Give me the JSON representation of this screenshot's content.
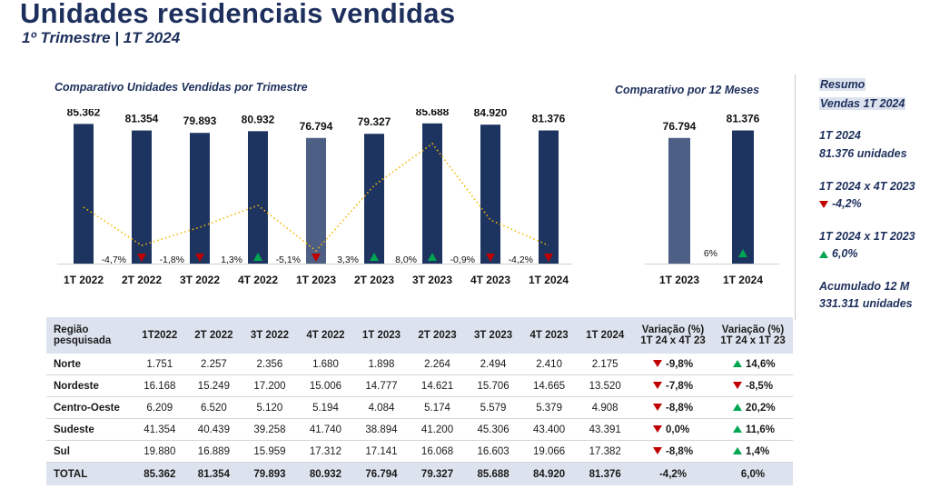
{
  "header": {
    "title": "Unidades residenciais vendidas",
    "subtitle": "1º Trimestre | 1T 2024"
  },
  "colors": {
    "dark_bar": "#1d3461",
    "light_bar": "#4d5f85",
    "trend_line": "#f5b800",
    "down": "#c00000",
    "up": "#00a651",
    "table_header": "#dde3ee"
  },
  "chart_data": [
    {
      "type": "bar",
      "title": "Comparativo Unidades Vendidas por Trimestre",
      "categories": [
        "1T 2022",
        "2T 2022",
        "3T 2022",
        "4T 2022",
        "1T 2023",
        "2T 2023",
        "3T 2023",
        "4T 2023",
        "1T 2024"
      ],
      "values": [
        85362,
        81354,
        79893,
        80932,
        76794,
        79327,
        85688,
        84920,
        81376
      ],
      "value_labels": [
        "85.362",
        "81.354",
        "79.893",
        "80.932",
        "76.794",
        "79.327",
        "85.688",
        "84.920",
        "81.376"
      ],
      "highlight_index": 4,
      "change_labels": [
        "-4,7%",
        "-1,8%",
        "1,3%",
        "-5,1%",
        "3,3%",
        "8,0%",
        "-0,9%",
        "-4,2%"
      ],
      "change_direction": [
        "down",
        "down",
        "up",
        "down",
        "up",
        "up",
        "down",
        "down"
      ],
      "trend_line": [
        62,
        20,
        40,
        64,
        14,
        86,
        132,
        48,
        20
      ],
      "trend_line_style": "dotted",
      "ylim": [
        0,
        90000
      ]
    },
    {
      "type": "bar",
      "title": "Comparativo por 12 Meses",
      "categories": [
        "1T 2023",
        "1T 2024"
      ],
      "values": [
        76794,
        81376
      ],
      "value_labels": [
        "76.794",
        "81.376"
      ],
      "change_label": "6%",
      "change_direction": "up",
      "ylim": [
        0,
        90000
      ]
    }
  ],
  "summary": {
    "heading1": "Resumo",
    "heading2": "Vendas 1T 2024",
    "period": "1T 2024",
    "units": "81.376  unidades",
    "cmp1_title": "1T 2024 x 4T 2023",
    "cmp1_value": "-4,2%",
    "cmp2_title": "1T 2024 x 1T 2023",
    "cmp2_value": "6,0%",
    "acc_title": "Acumulado 12 M",
    "acc_value": "331.311 unidades"
  },
  "table": {
    "headers": [
      "Região pesquisada",
      "1T2022",
      "2T 2022",
      "3T 2022",
      "4T 2022",
      "1T 2023",
      "2T 2023",
      "3T 2023",
      "4T 2023",
      "1T 2024",
      "Variação (%) 1T 24 x 4T 23",
      "Variação (%) 1T 24 x 1T 23"
    ],
    "rows": [
      {
        "region": "Norte",
        "values": [
          "1.751",
          "2.257",
          "2.356",
          "1.680",
          "1.898",
          "2.264",
          "2.494",
          "2.410",
          "2.175"
        ],
        "var1": "-9,8%",
        "var1_dir": "down",
        "var2": "14,6%",
        "var2_dir": "up"
      },
      {
        "region": "Nordeste",
        "values": [
          "16.168",
          "15.249",
          "17.200",
          "15.006",
          "14.777",
          "14.621",
          "15.706",
          "14.665",
          "13.520"
        ],
        "var1": "-7,8%",
        "var1_dir": "down",
        "var2": "-8,5%",
        "var2_dir": "down"
      },
      {
        "region": "Centro-Oeste",
        "values": [
          "6.209",
          "6.520",
          "5.120",
          "5.194",
          "4.084",
          "5.174",
          "5.579",
          "5.379",
          "4.908"
        ],
        "var1": "-8,8%",
        "var1_dir": "down",
        "var2": "20,2%",
        "var2_dir": "up"
      },
      {
        "region": "Sudeste",
        "values": [
          "41.354",
          "40.439",
          "39.258",
          "41.740",
          "38.894",
          "41.200",
          "45.306",
          "43.400",
          "43.391"
        ],
        "var1": "0,0%",
        "var1_dir": "down",
        "var2": "11,6%",
        "var2_dir": "up"
      },
      {
        "region": "Sul",
        "values": [
          "19.880",
          "16.889",
          "15.959",
          "17.312",
          "17.141",
          "16.068",
          "16.603",
          "19.066",
          "17.382"
        ],
        "var1": "-8,8%",
        "var1_dir": "down",
        "var2": "1,4%",
        "var2_dir": "up"
      }
    ],
    "total": {
      "region": "TOTAL",
      "values": [
        "85.362",
        "81.354",
        "79.893",
        "80.932",
        "76.794",
        "79.327",
        "85.688",
        "84.920",
        "81.376"
      ],
      "var1": "-4,2%",
      "var2": "6,0%"
    }
  }
}
